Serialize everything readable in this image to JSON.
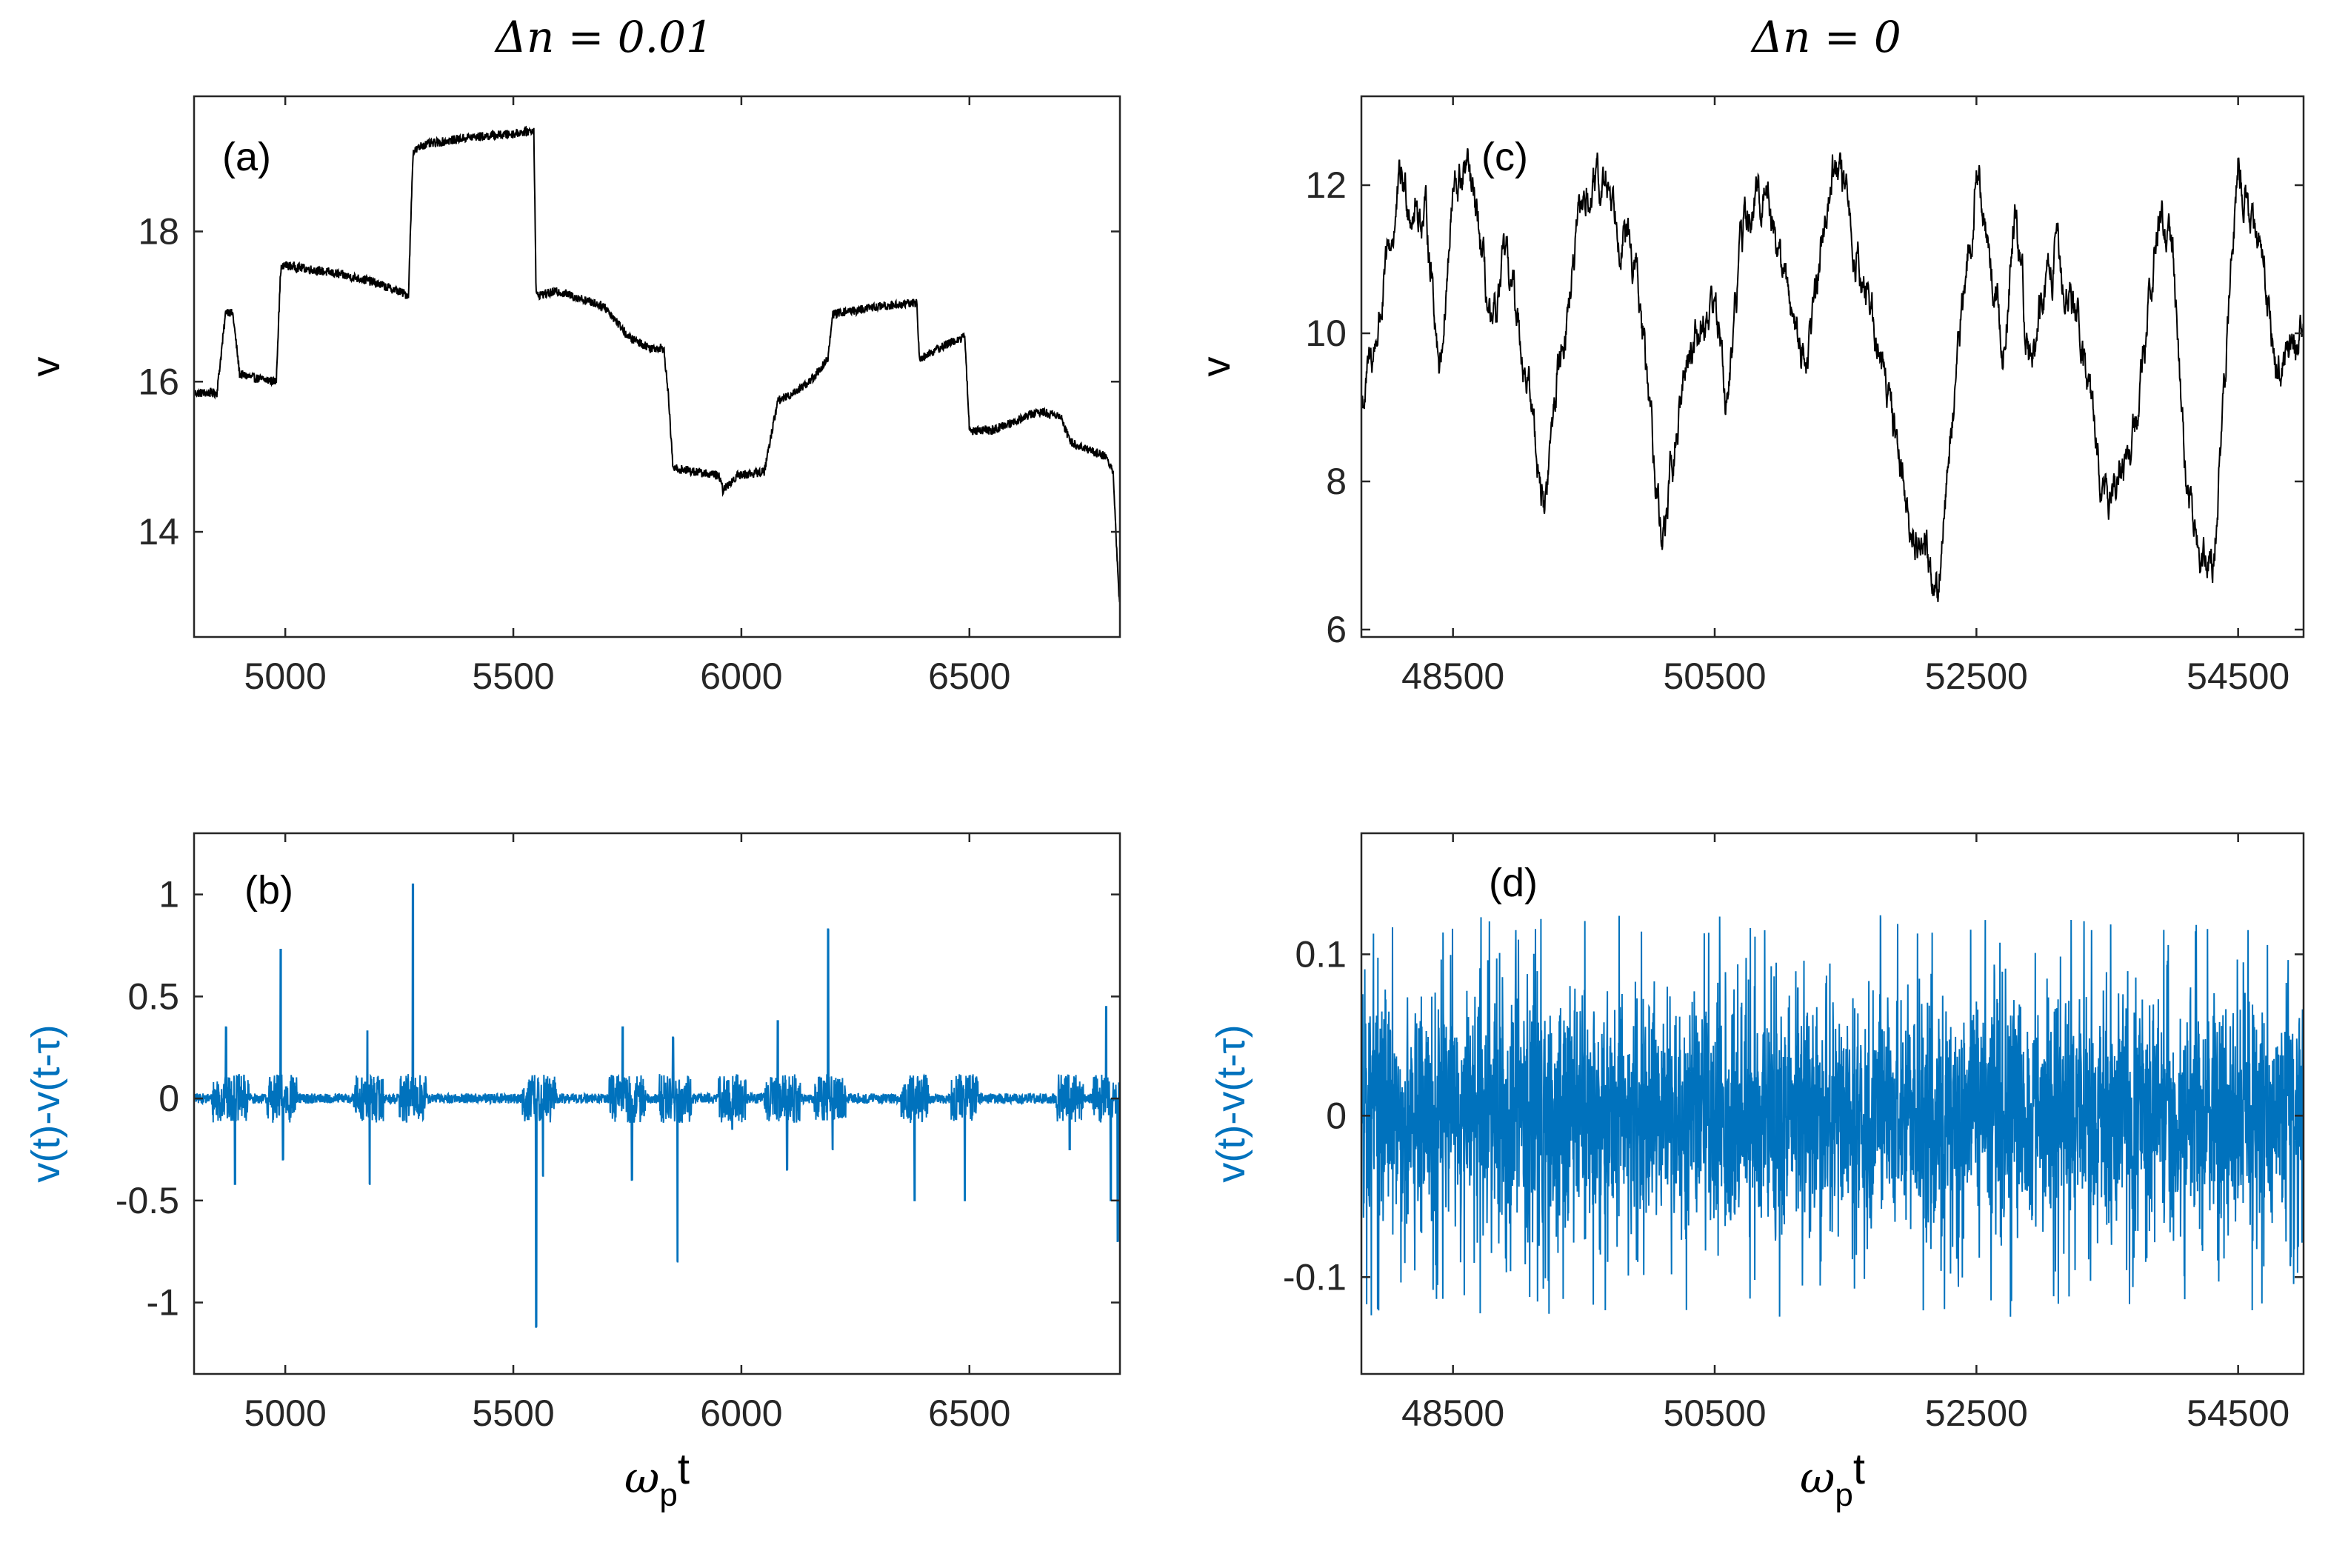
{
  "colors": {
    "black_series": "#000000",
    "blue_series": "#0072BD",
    "axis": "#262626"
  },
  "column_titles": {
    "left": "Δn = 0.01",
    "right": "Δn = 0"
  },
  "chart_data": [
    {
      "id": "a",
      "type": "line",
      "panel_label": "(a)",
      "xlabel": "",
      "ylabel": "v",
      "xlim": [
        4800,
        6830
      ],
      "ylim": [
        12.6,
        19.8
      ],
      "xticks": [
        5000,
        5500,
        6000,
        6500
      ],
      "yticks": [
        14,
        16,
        18
      ],
      "xtick_labels": [
        "5000",
        "5500",
        "6000",
        "6500"
      ],
      "ytick_labels": [
        "14",
        "16",
        "18"
      ],
      "series": [
        {
          "name": "v",
          "color": "#000000",
          "x": [
            4800,
            4850,
            4870,
            4885,
            4900,
            4930,
            4980,
            4990,
            5000,
            5100,
            5180,
            5250,
            5270,
            5280,
            5300,
            5400,
            5500,
            5545,
            5550,
            5600,
            5700,
            5740,
            5750,
            5800,
            5830,
            5840,
            5850,
            5900,
            5950,
            5960,
            5990,
            6050,
            6080,
            6100,
            6150,
            6190,
            6200,
            6300,
            6385,
            6390,
            6450,
            6490,
            6500,
            6540,
            6550,
            6650,
            6700,
            6720,
            6800,
            6815,
            6828
          ],
          "y": [
            15.85,
            15.85,
            16.95,
            16.9,
            16.1,
            16.05,
            16.0,
            17.5,
            17.55,
            17.45,
            17.35,
            17.2,
            17.15,
            19.05,
            19.15,
            19.25,
            19.3,
            19.35,
            17.15,
            17.2,
            17.0,
            16.7,
            16.6,
            16.45,
            16.45,
            15.8,
            14.85,
            14.8,
            14.75,
            14.55,
            14.75,
            14.8,
            15.75,
            15.8,
            16.0,
            16.3,
            16.9,
            17.0,
            17.05,
            16.3,
            16.5,
            16.6,
            15.35,
            15.35,
            15.35,
            15.6,
            15.55,
            15.2,
            15.0,
            14.8,
            13.1
          ]
        }
      ]
    },
    {
      "id": "b",
      "type": "line",
      "panel_label": "(b)",
      "xlabel": "ω_p t",
      "ylabel": "v(t)-v(t-τ)",
      "xlim": [
        4800,
        6830
      ],
      "ylim": [
        -1.35,
        1.3
      ],
      "xticks": [
        5000,
        5500,
        6000,
        6500
      ],
      "yticks": [
        -1,
        -0.5,
        0,
        0.5,
        1
      ],
      "xtick_labels": [
        "5000",
        "5500",
        "6000",
        "6500"
      ],
      "ytick_labels": [
        "-1",
        "-0.5",
        "0",
        "0.5",
        "1"
      ],
      "series": [
        {
          "name": "v(t)-v(t-τ)",
          "color": "#0072BD",
          "baseline_noise": 0.025,
          "burst_noise": 0.12,
          "spikes": [
            [
              4870,
              0.35
            ],
            [
              4890,
              -0.42
            ],
            [
              4990,
              0.73
            ],
            [
              4995,
              -0.3
            ],
            [
              5180,
              0.33
            ],
            [
              5185,
              -0.42
            ],
            [
              5280,
              1.05
            ],
            [
              5550,
              -1.12
            ],
            [
              5565,
              -0.38
            ],
            [
              5740,
              0.35
            ],
            [
              5760,
              -0.4
            ],
            [
              5860,
              -0.8
            ],
            [
              5850,
              0.3
            ],
            [
              5980,
              -0.15
            ],
            [
              6080,
              0.38
            ],
            [
              6100,
              -0.35
            ],
            [
              6190,
              0.83
            ],
            [
              6200,
              -0.25
            ],
            [
              6380,
              -0.5
            ],
            [
              6490,
              -0.5
            ],
            [
              6720,
              -0.25
            ],
            [
              6800,
              0.45
            ],
            [
              6810,
              -0.5
            ],
            [
              6825,
              -0.7
            ]
          ]
        }
      ]
    },
    {
      "id": "c",
      "type": "line",
      "panel_label": "(c)",
      "xlabel": "",
      "ylabel": "v",
      "xlim": [
        47800,
        55000
      ],
      "ylim": [
        5.9,
        13.2
      ],
      "xticks": [
        48500,
        50500,
        52500,
        54500
      ],
      "yticks": [
        6,
        8,
        10,
        12
      ],
      "xtick_labels": [
        "48500",
        "50500",
        "52500",
        "54500"
      ],
      "ytick_labels": [
        "6",
        "8",
        "10",
        "12"
      ],
      "series": [
        {
          "name": "v",
          "color": "#000000",
          "x": [
            47800,
            47900,
            48100,
            48300,
            48400,
            48500,
            48600,
            48700,
            48800,
            48900,
            49000,
            49100,
            49200,
            49300,
            49500,
            49700,
            49900,
            50100,
            50300,
            50500,
            50600,
            50700,
            50900,
            51000,
            51200,
            51400,
            51600,
            51800,
            52000,
            52200,
            52300,
            52500,
            52700,
            52800,
            52900,
            53100,
            53300,
            53500,
            53700,
            53900,
            54000,
            54100,
            54300,
            54500,
            54700,
            54800,
            55000
          ],
          "y": [
            9.0,
            9.8,
            12.0,
            11.5,
            9.6,
            11.8,
            12.2,
            11.3,
            9.8,
            11.0,
            10.2,
            9.0,
            7.6,
            9.5,
            11.8,
            12.0,
            10.8,
            7.2,
            9.8,
            10.5,
            9.0,
            11.3,
            12.0,
            11.0,
            9.6,
            12.4,
            11.0,
            9.5,
            7.5,
            6.6,
            8.5,
            12.3,
            9.8,
            11.5,
            9.6,
            11.1,
            10.0,
            7.5,
            8.5,
            11.6,
            11.0,
            8.0,
            6.6,
            12.3,
            11.0,
            9.5,
            10.0
          ],
          "jitter": 0.35
        }
      ]
    },
    {
      "id": "d",
      "type": "line",
      "panel_label": "(d)",
      "xlabel": "ω_p t",
      "ylabel": "v(t)-v(t-τ)",
      "xlim": [
        47800,
        55000
      ],
      "ylim": [
        -0.16,
        0.175
      ],
      "xticks": [
        48500,
        50500,
        52500,
        54500
      ],
      "yticks": [
        -0.1,
        0,
        0.1
      ],
      "xtick_labels": [
        "48500",
        "50500",
        "52500",
        "54500"
      ],
      "ytick_labels": [
        "-0.1",
        "0",
        "0.1"
      ],
      "series": [
        {
          "name": "v(t)-v(t-τ)",
          "color": "#0072BD",
          "noise_amplitude": 0.045,
          "max_abs": 0.125
        }
      ]
    }
  ]
}
